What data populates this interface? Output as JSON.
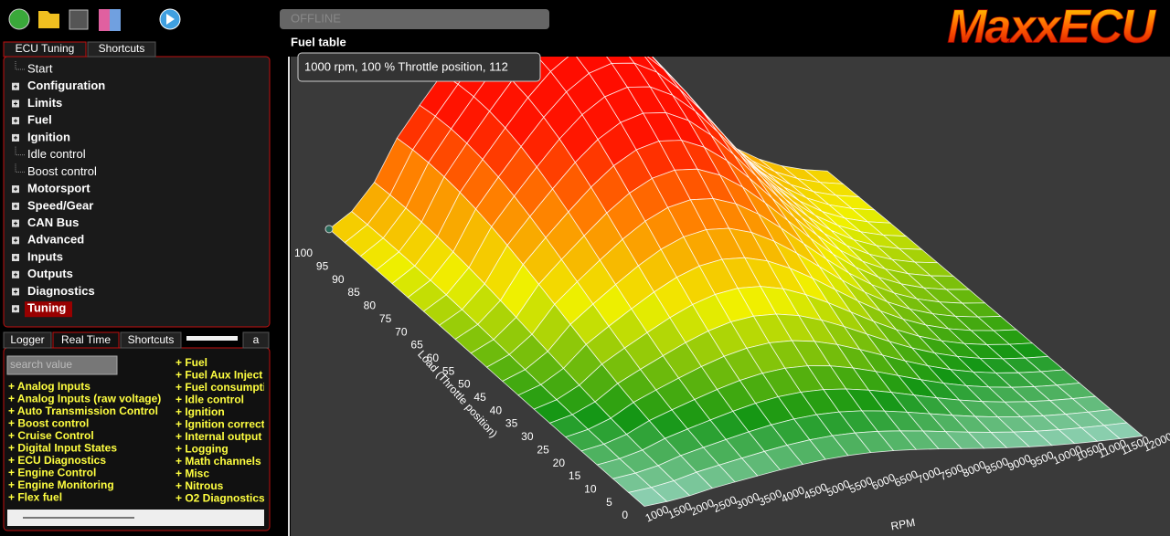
{
  "toolbar": {
    "status": "OFFLINE"
  },
  "logo": "MaxxECU",
  "top_tabs": [
    "ECU Tuning",
    "Shortcuts"
  ],
  "tree": [
    {
      "label": "Start",
      "expandable": false,
      "bold": false
    },
    {
      "label": "Configuration",
      "expandable": true,
      "bold": true
    },
    {
      "label": "Limits",
      "expandable": true,
      "bold": true
    },
    {
      "label": "Fuel",
      "expandable": true,
      "bold": true
    },
    {
      "label": "Ignition",
      "expandable": true,
      "bold": true
    },
    {
      "label": "Idle control",
      "expandable": false,
      "bold": false
    },
    {
      "label": "Boost control",
      "expandable": false,
      "bold": false
    },
    {
      "label": "Motorsport",
      "expandable": true,
      "bold": true
    },
    {
      "label": "Speed/Gear",
      "expandable": true,
      "bold": true
    },
    {
      "label": "CAN Bus",
      "expandable": true,
      "bold": true
    },
    {
      "label": "Advanced",
      "expandable": true,
      "bold": true
    },
    {
      "label": "Inputs",
      "expandable": true,
      "bold": true
    },
    {
      "label": "Outputs",
      "expandable": true,
      "bold": true
    },
    {
      "label": "Diagnostics",
      "expandable": true,
      "bold": true
    },
    {
      "label": "Tuning",
      "expandable": true,
      "bold": true,
      "selected": true
    }
  ],
  "bottom_tabs": [
    "Logger",
    "Real Time",
    "Shortcuts",
    "a"
  ],
  "search_placeholder": "search value",
  "realtime_left": [
    "+ Analog Inputs",
    "+ Analog Inputs (raw voltage)",
    "+ Auto Transmission Control",
    "+ Boost control",
    "+ Cruise Control",
    "+ Digital Input States",
    "+ ECU Diagnostics",
    "+ Engine Control",
    "+ Engine Monitoring",
    "+ Flex fuel"
  ],
  "realtime_right": [
    "+ Fuel",
    "+ Fuel Aux Inject",
    "+ Fuel consumpti",
    "+ Idle control",
    "+ Ignition",
    "+ Ignition correcti",
    "+ Internal output",
    "+ Logging",
    "+ Math channels",
    "+ Misc",
    "+ Nitrous",
    "+ O2 Diagnostics"
  ],
  "main": {
    "title": "Fuel table",
    "tooltip": "1000 rpm, 100 % Throttle position, 112"
  },
  "chart": {
    "load_label": "Load (Throttle position)",
    "rpm_label": "RPM",
    "load_ticks": [
      0,
      5,
      10,
      15,
      20,
      25,
      30,
      35,
      40,
      45,
      50,
      55,
      60,
      65,
      70,
      75,
      80,
      85,
      90,
      95,
      100
    ],
    "rpm_ticks": [
      1000,
      1500,
      2000,
      2500,
      3000,
      3500,
      4000,
      4500,
      5000,
      5500,
      6000,
      6500,
      7000,
      7500,
      8000,
      8500,
      9000,
      9500,
      10000,
      10500,
      11000,
      11500,
      12000
    ]
  }
}
